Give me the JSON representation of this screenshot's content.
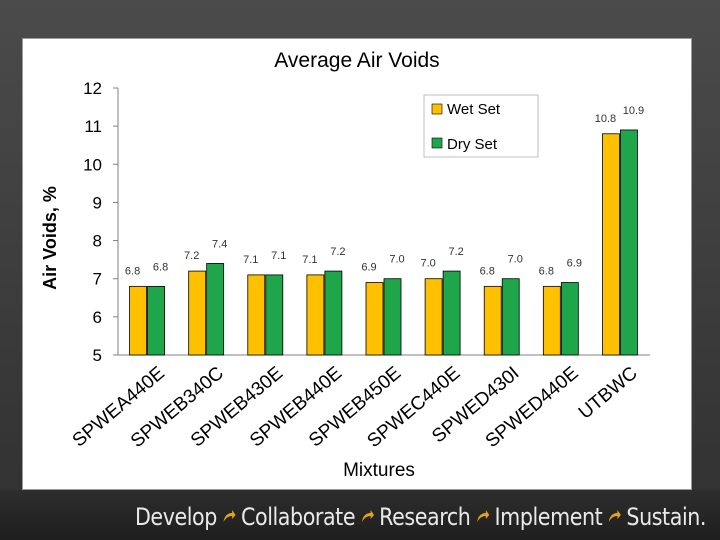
{
  "footer": {
    "words": [
      "Develop",
      "Collaborate",
      "Research",
      "Implement",
      "Sustain."
    ],
    "arrow_icon": "curved-arrow-icon",
    "arrow_color": "#e8a21a"
  },
  "colors": {
    "wet": "#ffc000",
    "dry": "#1fa64a"
  },
  "chart_data": {
    "type": "bar",
    "title": "Average Air Voids",
    "xlabel": "Mixtures",
    "ylabel": "Air Voids, %",
    "ylim": [
      5,
      12
    ],
    "yticks": [
      5,
      6,
      7,
      8,
      9,
      10,
      11,
      12
    ],
    "grid": false,
    "legend": "top-right",
    "categories": [
      "SPWEA440E",
      "SPWEB340C",
      "SPWEB430E",
      "SPWEB440E",
      "SPWEB450E",
      "SPWEC440E",
      "SPWED430I",
      "SPWED440E",
      "UTBWC"
    ],
    "series": [
      {
        "name": "Wet Set",
        "values": [
          6.8,
          7.2,
          7.1,
          7.1,
          6.9,
          7.0,
          6.8,
          6.8,
          10.8
        ],
        "labels": [
          "6.8",
          "7.2",
          "7.1",
          "7.1",
          "6.9",
          "7.0",
          "6.8",
          "6.8",
          "10.8"
        ]
      },
      {
        "name": "Dry Set",
        "values": [
          6.8,
          7.4,
          7.1,
          7.2,
          7.0,
          7.2,
          7.0,
          6.9,
          10.9
        ],
        "labels": [
          "6.8",
          "7.4",
          "7.1",
          "7.2",
          "7.0",
          "7.2",
          "7.0",
          "6.9",
          "10.9"
        ]
      }
    ]
  }
}
